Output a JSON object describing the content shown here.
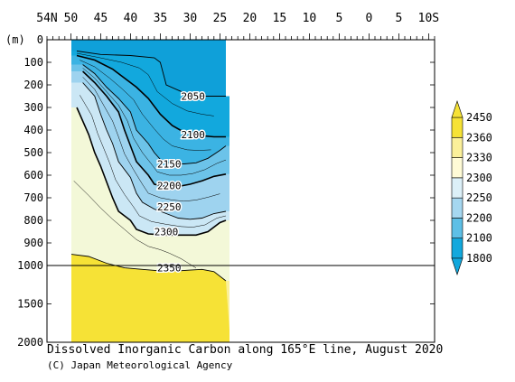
{
  "chart_data": {
    "type": "contour",
    "title": "Dissolved Inorganic Carbon along 165°E line, August 2020",
    "credit": "(C) Japan Meteorological Agency",
    "ylabel": "(m)",
    "x_axis": {
      "ticks": [
        54,
        50,
        45,
        40,
        35,
        30,
        25,
        20,
        15,
        10,
        5,
        0,
        -5,
        -10
      ],
      "tick_labels": [
        "54N",
        "50",
        "45",
        "40",
        "35",
        "30",
        "25",
        "20",
        "15",
        "10",
        "5",
        "0",
        "5",
        "10S"
      ],
      "range": [
        54,
        -11
      ]
    },
    "y_axis": {
      "upper_ticks": [
        0,
        100,
        200,
        300,
        400,
        500,
        600,
        700,
        800,
        900,
        1000
      ],
      "lower_ticks": [
        1500,
        2000
      ],
      "break_at": 1000,
      "range": [
        0,
        2000
      ]
    },
    "data_extent_lat": [
      50,
      24
    ],
    "contour_levels": [
      2050,
      2100,
      2150,
      2200,
      2250,
      2300,
      2350
    ],
    "contour_labels": [
      {
        "text": "2050",
        "lat": 29.5,
        "depth": 250
      },
      {
        "text": "2100",
        "lat": 29.5,
        "depth": 420
      },
      {
        "text": "2150",
        "lat": 33.5,
        "depth": 550
      },
      {
        "text": "2200",
        "lat": 33.5,
        "depth": 645
      },
      {
        "text": "2250",
        "lat": 33.5,
        "depth": 740
      },
      {
        "text": "2300",
        "lat": 34.0,
        "depth": 850
      },
      {
        "text": "2350",
        "lat": 33.5,
        "depth": 1030
      }
    ],
    "contours": [
      {
        "level": 2050,
        "points": [
          [
            49,
            50
          ],
          [
            45,
            65
          ],
          [
            40,
            70
          ],
          [
            36,
            80
          ],
          [
            35,
            100
          ],
          [
            34,
            200
          ],
          [
            31,
            235
          ],
          [
            28,
            250
          ],
          [
            25,
            250
          ],
          [
            24,
            250
          ]
        ]
      },
      {
        "level": 2100,
        "points": [
          [
            49,
            70
          ],
          [
            46,
            90
          ],
          [
            43,
            130
          ],
          [
            41,
            170
          ],
          [
            39,
            210
          ],
          [
            37,
            260
          ],
          [
            35,
            330
          ],
          [
            33,
            380
          ],
          [
            31,
            410
          ],
          [
            28,
            425
          ],
          [
            26,
            430
          ],
          [
            24,
            430
          ]
        ]
      },
      {
        "level": 2150,
        "points": [
          [
            48,
            110
          ],
          [
            46,
            150
          ],
          [
            44,
            210
          ],
          [
            42,
            260
          ],
          [
            40,
            320
          ],
          [
            39,
            400
          ],
          [
            37,
            460
          ],
          [
            36,
            500
          ],
          [
            35,
            530
          ],
          [
            33,
            550
          ],
          [
            31,
            550
          ],
          [
            29,
            545
          ],
          [
            27,
            525
          ],
          [
            25,
            490
          ],
          [
            24,
            470
          ]
        ]
      },
      {
        "level": 2200,
        "points": [
          [
            48,
            140
          ],
          [
            46,
            190
          ],
          [
            44,
            250
          ],
          [
            42,
            320
          ],
          [
            41,
            400
          ],
          [
            40,
            470
          ],
          [
            39,
            540
          ],
          [
            37,
            600
          ],
          [
            36,
            640
          ],
          [
            34,
            650
          ],
          [
            32,
            650
          ],
          [
            30,
            640
          ],
          [
            28,
            625
          ],
          [
            26,
            605
          ],
          [
            24,
            595
          ]
        ]
      },
      {
        "level": 2250,
        "points": [
          [
            48,
            190
          ],
          [
            46,
            250
          ],
          [
            45,
            330
          ],
          [
            44,
            400
          ],
          [
            43,
            460
          ],
          [
            42,
            540
          ],
          [
            40,
            610
          ],
          [
            39,
            680
          ],
          [
            38,
            720
          ],
          [
            36,
            750
          ],
          [
            34,
            770
          ],
          [
            32,
            790
          ],
          [
            30,
            795
          ],
          [
            28,
            790
          ],
          [
            26,
            770
          ],
          [
            24,
            760
          ]
        ]
      },
      {
        "level": 2300,
        "points": [
          [
            49,
            300
          ],
          [
            47,
            420
          ],
          [
            46,
            500
          ],
          [
            45,
            560
          ],
          [
            44,
            630
          ],
          [
            43,
            700
          ],
          [
            42,
            760
          ],
          [
            40,
            800
          ],
          [
            39,
            840
          ],
          [
            37,
            860
          ],
          [
            34,
            865
          ],
          [
            31,
            865
          ],
          [
            29,
            865
          ],
          [
            27,
            850
          ],
          [
            25,
            810
          ],
          [
            24,
            800
          ]
        ]
      },
      {
        "level": 2350,
        "points": [
          [
            50,
            950
          ],
          [
            47,
            960
          ],
          [
            44,
            990
          ],
          [
            41,
            1030
          ],
          [
            38,
            1050
          ],
          [
            35,
            1070
          ],
          [
            32,
            1070
          ],
          [
            30,
            1060
          ],
          [
            28,
            1050
          ],
          [
            26,
            1080
          ],
          [
            24,
            1200
          ]
        ]
      }
    ],
    "colorbar": {
      "boundaries": [
        1800,
        2100,
        2200,
        2250,
        2300,
        2330,
        2360,
        2450
      ],
      "tick_labels": [
        "2450",
        "2360",
        "2330",
        "2300",
        "2250",
        "2200",
        "2100",
        "1800"
      ],
      "colors": [
        "#12a8dd",
        "#5dbfe6",
        "#a5d7f0",
        "#dcf0f8",
        "#fffbd6",
        "#fbf09a",
        "#f6e236"
      ],
      "colors_bottom_to_top": true
    },
    "grid": false
  }
}
